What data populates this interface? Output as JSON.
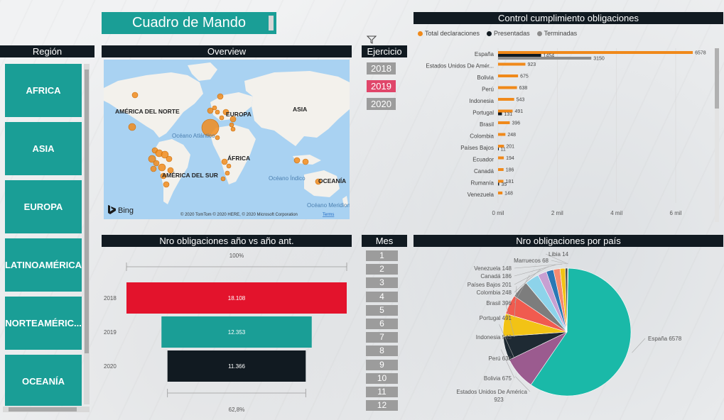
{
  "app": {
    "title": "Cuadro de Mando",
    "colors": {
      "accent": "#1a9e96",
      "header": "#111a21",
      "slicer_off": "#9c9c9c",
      "slicer_on": "#e0466a",
      "orange": "#f0891a",
      "navy": "#111a21",
      "gray": "#8c8c8c",
      "red": "#e3132c"
    }
  },
  "region": {
    "header": "Región",
    "items": [
      "AFRICA",
      "ASIA",
      "EUROPA",
      "LATINOAMÉRICA",
      "NORTEAMÉRIC...",
      "OCEANÍA"
    ]
  },
  "overview": {
    "header": "Overview",
    "labels": {
      "north_america": "AMÉRICA DEL NORTE",
      "europe": "EUROPA",
      "asia": "ASIA",
      "atlantic": "Océano Atlántico",
      "africa": "ÁFRICA",
      "south_america": "AMÉRICA DEL SUR",
      "indian": "Océano Índico",
      "oceania": "OCEANÍA",
      "southern": "Océano Meridional"
    },
    "provider": "Bing",
    "copyright": "© 2020 TomTom © 2020 HERE, © 2020 Microsoft Corporation",
    "terms": "Terms"
  },
  "ejercicio": {
    "header": "Ejercicio",
    "years": [
      "2018",
      "2019",
      "2020"
    ],
    "selected": "2019"
  },
  "control": {
    "header": "Control cumplimiento obligaciones",
    "legend": [
      "Total declaraciones",
      "Presentadas",
      "Terminadas"
    ]
  },
  "yoy": {
    "header": "Nro obligaciones año vs año ant.",
    "top_label": "100%",
    "bottom_label": "62,8%"
  },
  "mes": {
    "header": "Mes",
    "months": [
      "1",
      "2",
      "3",
      "4",
      "5",
      "6",
      "7",
      "8",
      "9",
      "10",
      "11",
      "12"
    ]
  },
  "pie": {
    "header": "Nro obligaciones por país"
  },
  "chart_data": [
    {
      "type": "bar",
      "orientation": "horizontal",
      "title": "Control cumplimiento obligaciones",
      "categories": [
        "España",
        "Estados Unidos De Amér...",
        "Bolivia",
        "Perú",
        "Indonesia",
        "Portugal",
        "Brasil",
        "Colombia",
        "Países Bajos",
        "Ecuador",
        "Canadá",
        "Rumanía",
        "Venezuela"
      ],
      "series": [
        {
          "name": "Total declaraciones",
          "values": [
            6578,
            923,
            675,
            638,
            543,
            491,
            396,
            248,
            201,
            194,
            186,
            181,
            148
          ]
        },
        {
          "name": "Presentadas",
          "values": [
            1454,
            null,
            null,
            null,
            null,
            131,
            null,
            null,
            11,
            null,
            null,
            35,
            null
          ]
        },
        {
          "name": "Terminadas",
          "values": [
            3150,
            null,
            null,
            null,
            null,
            null,
            null,
            null,
            null,
            null,
            null,
            null,
            null
          ]
        }
      ],
      "data_labels": [
        [
          "6578",
          "923",
          "675",
          "638",
          "543",
          "491",
          "396",
          "248",
          "201",
          "194",
          "186",
          "181",
          "148"
        ],
        [
          "1454",
          "",
          "",
          "",
          "",
          "131",
          "",
          "",
          "11",
          "",
          "",
          "35",
          ""
        ],
        [
          "3150",
          "",
          "",
          "",
          "",
          "",
          "",
          "",
          "",
          "",
          "",
          "",
          ""
        ]
      ],
      "xticks": [
        "0 mil",
        "2 mil",
        "4 mil",
        "6 mil"
      ],
      "xlim": [
        0,
        7200
      ],
      "legend": "top-left",
      "grid": true
    },
    {
      "type": "bar",
      "orientation": "horizontal",
      "title": "Nro obligaciones año vs año ant.",
      "categories": [
        "2018",
        "2019",
        "2020"
      ],
      "values": [
        18108,
        12353,
        11366
      ],
      "value_labels": [
        "18.108",
        "12.353",
        "11.366"
      ],
      "colors": [
        "#e3132c",
        "#1a9e96",
        "#111a21"
      ],
      "annotations": [
        "100%",
        "62,8%"
      ]
    },
    {
      "type": "pie",
      "title": "Nro obligaciones por país",
      "categories": [
        "España",
        "Estados Unidos De América",
        "Bolivia",
        "Perú",
        "Indonesia",
        "Portugal",
        "Brasil",
        "Colombia",
        "Países Bajos",
        "Canadá",
        "Venezuela",
        "Marruecos",
        "Libia"
      ],
      "values": [
        6578,
        923,
        675,
        638,
        543,
        491,
        396,
        248,
        201,
        186,
        148,
        68,
        14
      ],
      "labels": [
        "España 6578",
        "Estados Unidos De América 923",
        "Bolivia 675",
        "Perú 638",
        "Indonesia 543",
        "Portugal 491",
        "Brasil 396",
        "Colombia 248",
        "Países Bajos 201",
        "Canadá 186",
        "Venezuela 148",
        "Marruecos 68",
        "Libia 14"
      ],
      "colors": [
        "#1ab9a8",
        "#9b5b8f",
        "#1e2a33",
        "#f2c315",
        "#f05b4f",
        "#7d7d7d",
        "#8dd3ea",
        "#c7a0d2",
        "#2a78b5",
        "#f58a6f",
        "#f2c315",
        "#4a4a4a",
        "#b0b0b0"
      ]
    }
  ]
}
